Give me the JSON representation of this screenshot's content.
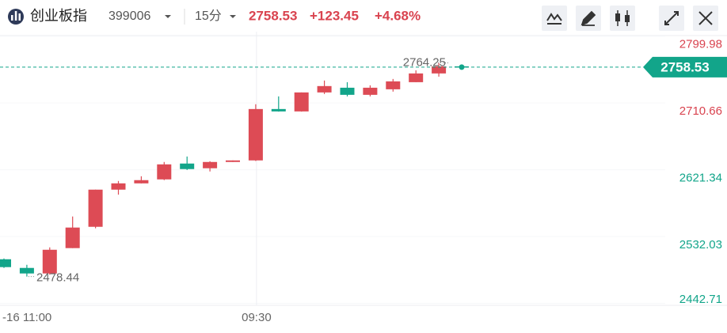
{
  "header": {
    "name": "创业板指",
    "code": "399006",
    "period": "15分",
    "price": 2758.53,
    "change": "+123.45",
    "change_pct": "+4.68%"
  },
  "chart_data": {
    "type": "candlestick",
    "categories": [
      "-16 11:00",
      null,
      null,
      null,
      null,
      null,
      null,
      null,
      null,
      null,
      null,
      "09:30",
      null,
      null,
      null,
      null,
      null,
      null,
      null,
      null,
      null
    ],
    "open": [
      2501.6,
      2490.0,
      2482.6,
      2516.5,
      2545.0,
      2594.7,
      2603.1,
      2608.4,
      2629.6,
      2623.3,
      2631.7,
      2633.8,
      2702.5,
      2699.3,
      2724.7,
      2731.0,
      2721.5,
      2728.9,
      2738.4,
      2750.1,
      2759.6
    ],
    "high": [
      2502.6,
      2494.2,
      2517.5,
      2558.8,
      2594.7,
      2606.3,
      2612.6,
      2631.7,
      2639.0,
      2632.7,
      2633.8,
      2708.9,
      2719.4,
      2724.7,
      2740.6,
      2738.4,
      2734.2,
      2742.7,
      2754.3,
      2764.25,
      2761.7
    ],
    "low": [
      2490.0,
      2478.44,
      2481.0,
      2516.5,
      2543.0,
      2588.0,
      2603.0,
      2607.4,
      2621.0,
      2619.0,
      2631.7,
      2633.0,
      2699.0,
      2699.0,
      2722.6,
      2719.4,
      2719.4,
      2725.8,
      2738.4,
      2745.8,
      2757.5
    ],
    "close": [
      2491.1,
      2482.6,
      2514.3,
      2544.0,
      2594.7,
      2603.1,
      2607.4,
      2628.5,
      2622.2,
      2631.7,
      2633.8,
      2702.5,
      2699.3,
      2724.7,
      2733.2,
      2721.5,
      2731.0,
      2739.5,
      2750.1,
      2759.6,
      2758.53
    ],
    "max_label": "2764.25",
    "min_label": "2478.44",
    "ylim": [
      2440,
      2806
    ],
    "yticks": [
      2799.98,
      2710.66,
      2621.34,
      2532.03,
      2442.71
    ],
    "ytick_colors": [
      "#d9434f",
      "#d9434f",
      "#12a58a",
      "#12a58a",
      "#12a58a"
    ],
    "up_color": "#dd4b55",
    "down_color": "#12a58a",
    "grid": true
  }
}
